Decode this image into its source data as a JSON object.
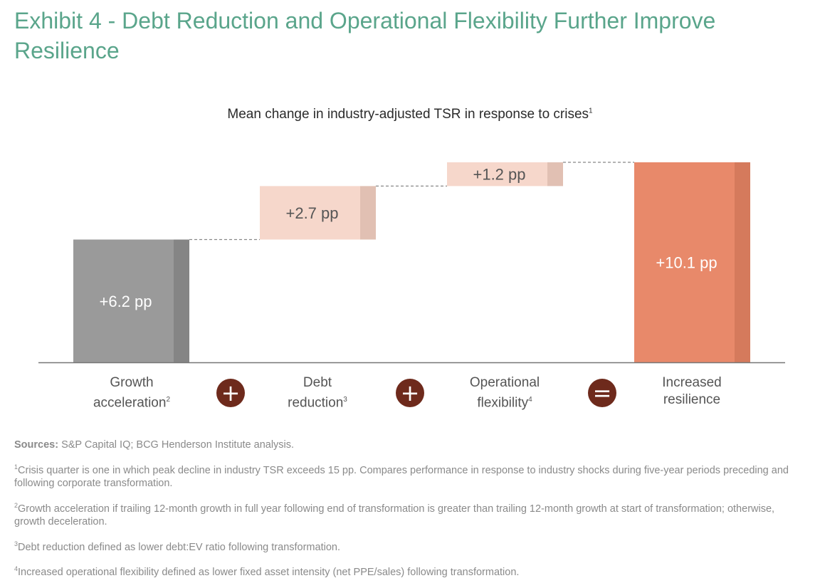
{
  "title": "Exhibit 4 - Debt Reduction and Operational Flexibility Further Improve Resilience",
  "chart_data": {
    "type": "waterfall",
    "title": "Mean change in industry-adjusted TSR in response to crises",
    "title_note": "1",
    "unit": "pp",
    "steps": [
      {
        "category": "Growth acceleration",
        "note": "2",
        "value": 6.2,
        "label": "+6.2 pp",
        "kind": "base"
      },
      {
        "category": "Debt reduction",
        "note": "3",
        "value": 2.7,
        "label": "+2.7 pp",
        "kind": "increment"
      },
      {
        "category": "Operational flexibility",
        "note": "4",
        "value": 1.2,
        "label": "+1.2 pp",
        "kind": "increment"
      },
      {
        "category": "Increased resilience",
        "note": "",
        "value": 10.1,
        "label": "+10.1 pp",
        "kind": "total"
      }
    ],
    "operators": [
      "+",
      "+",
      "="
    ],
    "colors": {
      "base": "#9a9a9a",
      "base_shade": "#858585",
      "increment": "#f6d7cb",
      "increment_shade": "#e1c0b3",
      "total": "#e8896a",
      "total_shade": "#d57a5c",
      "connector": "#888888",
      "axis": "#777777",
      "operator_fill": "#6e2a1c",
      "base_label": "#ffffff",
      "increment_label": "#555555",
      "total_label": "#ffffff"
    }
  },
  "categories_display": {
    "growth": {
      "line1": "Growth",
      "line2": "acceleration",
      "note": "2"
    },
    "debt": {
      "line1": "Debt",
      "line2": "reduction",
      "note": "3"
    },
    "ops": {
      "line1": "Operational",
      "line2": "flexibility",
      "note": "4"
    },
    "total": {
      "line1": "Increased",
      "line2": "resilience"
    }
  },
  "footnotes": {
    "sources_label": "Sources:",
    "sources_text": "S&P Capital IQ; BCG Henderson Institute analysis.",
    "note1_num": "1",
    "note1": "Crisis quarter is one in which peak decline in industry TSR exceeds 15 pp. Compares performance in response to industry shocks during five-year periods preceding and following corporate transformation.",
    "note2_num": "2",
    "note2": "Growth acceleration if trailing 12-month growth in full year following end of transformation is greater than trailing 12-month growth at start of transformation; otherwise, growth deceleration.",
    "note3_num": "3",
    "note3": "Debt reduction defined as lower debt:EV ratio following transformation.",
    "note4_num": "4",
    "note4": "Increased operational flexibility defined as lower fixed asset intensity (net PPE/sales) following transformation."
  }
}
